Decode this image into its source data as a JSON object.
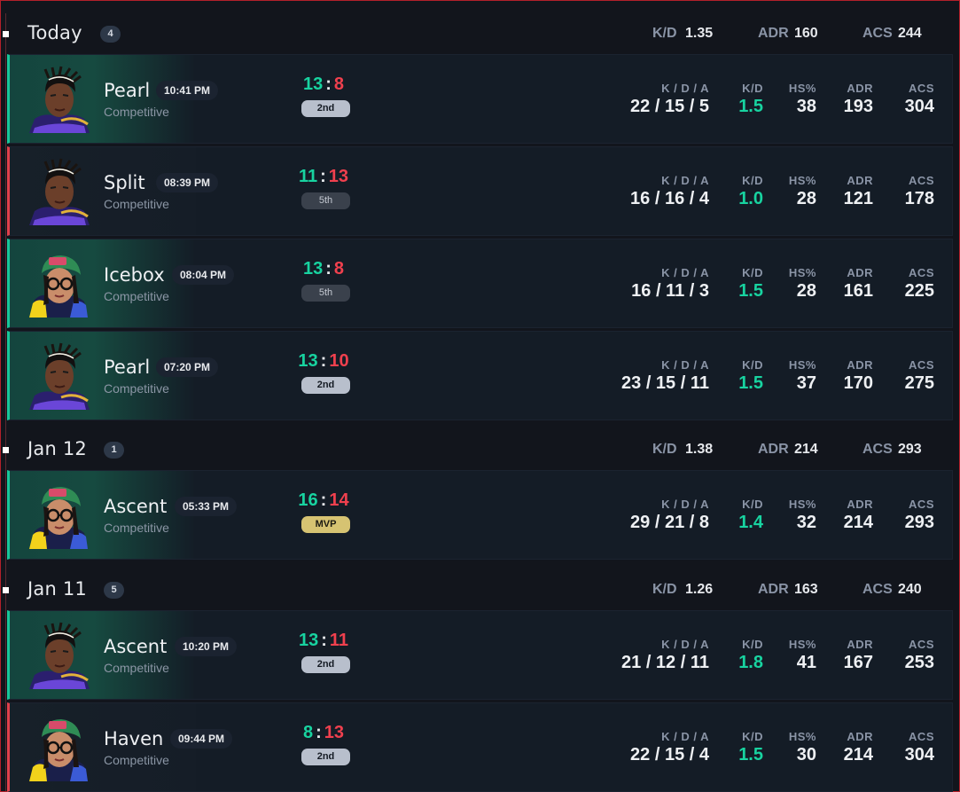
{
  "days": [
    {
      "title": "Today",
      "count": "4",
      "kd_label": "K/D",
      "kd": "1.35",
      "adr_label": "ADR",
      "adr": "160",
      "acs_label": "ACS",
      "acs": "244"
    },
    {
      "title": "Jan 12",
      "count": "1",
      "kd_label": "K/D",
      "kd": "1.38",
      "adr_label": "ADR",
      "adr": "214",
      "acs_label": "ACS",
      "acs": "293"
    },
    {
      "title": "Jan 11",
      "count": "5",
      "kd_label": "K/D",
      "kd": "1.26",
      "adr_label": "ADR",
      "adr": "163",
      "acs_label": "ACS",
      "acs": "240"
    }
  ],
  "column_labels": {
    "kda": "K / D / A",
    "kd": "K/D",
    "hs": "HS%",
    "adr": "ADR",
    "acs": "ACS"
  },
  "matches": [
    {
      "map": "Pearl",
      "time": "10:41 PM",
      "mode": "Competitive",
      "score_a": "13",
      "sep": ":",
      "score_b": "8",
      "place": "2nd",
      "kda": "22 / 15 / 5",
      "kd": "1.5",
      "hs": "38",
      "adr": "193",
      "acs": "304",
      "result": "win",
      "agent": "agent-1",
      "place_style": "grey"
    },
    {
      "map": "Split",
      "time": "08:39 PM",
      "mode": "Competitive",
      "score_a": "11",
      "sep": ":",
      "score_b": "13",
      "place": "5th",
      "kda": "16 / 16 / 4",
      "kd": "1.0",
      "hs": "28",
      "adr": "121",
      "acs": "178",
      "result": "loss",
      "agent": "agent-1",
      "place_style": "dark"
    },
    {
      "map": "Icebox",
      "time": "08:04 PM",
      "mode": "Competitive",
      "score_a": "13",
      "sep": ":",
      "score_b": "8",
      "place": "5th",
      "kda": "16 / 11 / 3",
      "kd": "1.5",
      "hs": "28",
      "adr": "161",
      "acs": "225",
      "result": "win",
      "agent": "agent-2",
      "place_style": "dark"
    },
    {
      "map": "Pearl",
      "time": "07:20 PM",
      "mode": "Competitive",
      "score_a": "13",
      "sep": ":",
      "score_b": "10",
      "place": "2nd",
      "kda": "23 / 15 / 11",
      "kd": "1.5",
      "hs": "37",
      "adr": "170",
      "acs": "275",
      "result": "win",
      "agent": "agent-1",
      "place_style": "grey"
    },
    {
      "map": "Ascent",
      "time": "05:33 PM",
      "mode": "Competitive",
      "score_a": "16",
      "sep": ":",
      "score_b": "14",
      "place": "MVP",
      "kda": "29 / 21 / 8",
      "kd": "1.4",
      "hs": "32",
      "adr": "214",
      "acs": "293",
      "result": "win",
      "agent": "agent-2",
      "place_style": "gold"
    },
    {
      "map": "Ascent",
      "time": "10:20 PM",
      "mode": "Competitive",
      "score_a": "13",
      "sep": ":",
      "score_b": "11",
      "place": "2nd",
      "kda": "21 / 12 / 11",
      "kd": "1.8",
      "hs": "41",
      "adr": "167",
      "acs": "253",
      "result": "win",
      "agent": "agent-1",
      "place_style": "grey"
    },
    {
      "map": "Haven",
      "time": "09:44 PM",
      "mode": "Competitive",
      "score_a": "8",
      "sep": ":",
      "score_b": "13",
      "place": "2nd",
      "kda": "22 / 15 / 4",
      "kd": "1.5",
      "hs": "30",
      "adr": "214",
      "acs": "304",
      "result": "loss",
      "agent": "agent-2",
      "place_style": "grey"
    }
  ],
  "colors": {
    "win": "#18c79a",
    "loss": "#e0404c",
    "accent_gold": "#d6c372"
  }
}
